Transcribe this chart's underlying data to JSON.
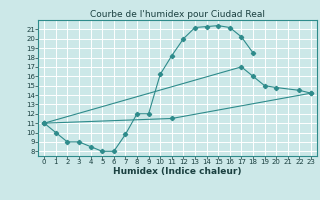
{
  "title": "Courbe de l'humidex pour Ciudad Real",
  "xlabel": "Humidex (Indice chaleur)",
  "bg_color": "#cce8e8",
  "grid_color": "#ffffff",
  "line_color": "#2e8b8b",
  "xlim": [
    -0.5,
    23.5
  ],
  "ylim": [
    7.5,
    22
  ],
  "xtick_labels": [
    "0",
    "1",
    "2",
    "3",
    "4",
    "5",
    "6",
    "7",
    "8",
    "9",
    "10",
    "11",
    "12",
    "13",
    "14",
    "15",
    "16",
    "17",
    "18",
    "19",
    "20",
    "21",
    "22",
    "23"
  ],
  "xticks": [
    0,
    1,
    2,
    3,
    4,
    5,
    6,
    7,
    8,
    9,
    10,
    11,
    12,
    13,
    14,
    15,
    16,
    17,
    18,
    19,
    20,
    21,
    22,
    23
  ],
  "yticks": [
    8,
    9,
    10,
    11,
    12,
    13,
    14,
    15,
    16,
    17,
    18,
    19,
    20,
    21
  ],
  "line1_x": [
    0,
    1,
    2,
    3,
    4,
    5,
    6,
    7,
    8,
    9,
    10,
    11,
    12,
    13,
    14,
    15,
    16,
    17,
    18
  ],
  "line1_y": [
    11,
    10,
    9,
    9,
    8.5,
    8,
    8,
    9.8,
    12,
    12,
    16.2,
    18.2,
    20,
    21.2,
    21.3,
    21.4,
    21.2,
    20.2,
    18.5
  ],
  "line2_x": [
    0,
    17,
    18,
    19,
    20,
    22,
    23
  ],
  "line2_y": [
    11,
    17,
    16,
    15,
    14.8,
    14.5,
    14.2
  ],
  "line3_x": [
    0,
    11,
    23
  ],
  "line3_y": [
    11,
    11.5,
    14.2
  ],
  "title_fontsize": 6.5,
  "xlabel_fontsize": 6.5,
  "tick_fontsize": 5.0
}
